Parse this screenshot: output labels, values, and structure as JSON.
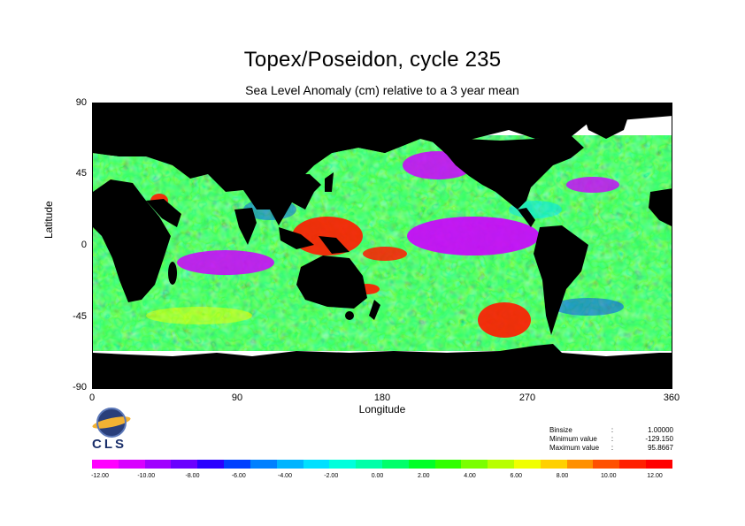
{
  "title": "Topex/Poseidon, cycle 235",
  "subtitle": "Sea Level Anomaly (cm) relative to a 3 year mean",
  "x_axis": {
    "label": "Longitude",
    "ticks": [
      "0",
      "90",
      "180",
      "270",
      "360"
    ]
  },
  "y_axis": {
    "label": "Latitude",
    "ticks": [
      "90",
      "45",
      "0",
      "-45",
      "-90"
    ]
  },
  "logo_text": "CLS",
  "stats": [
    {
      "label": "Binsize",
      "sep": ":",
      "value": "1.00000"
    },
    {
      "label": "Minimum value",
      "sep": ":",
      "value": "-129.150"
    },
    {
      "label": "Maximum value",
      "sep": ":",
      "value": "95.8667"
    }
  ],
  "colorbar": {
    "colors": [
      "#ff00ff",
      "#d800ff",
      "#a000ff",
      "#6a00ff",
      "#2a00ff",
      "#0040ff",
      "#0080ff",
      "#00b4ff",
      "#00e0ff",
      "#00ffdc",
      "#00ffa8",
      "#00ff6a",
      "#00ff28",
      "#30ff00",
      "#7aff00",
      "#b8ff00",
      "#f0ff00",
      "#ffd000",
      "#ff9000",
      "#ff5000",
      "#ff2000",
      "#ff0000"
    ],
    "tick_labels": [
      "-12.00",
      "-10.00",
      "-8.00",
      "-6.00",
      "-4.00",
      "-2.00",
      "0.00",
      "2.00",
      "4.00",
      "6.00",
      "8.00",
      "10.00",
      "12.00"
    ]
  },
  "colors": {
    "land": "#000000",
    "ice": "#ffffff",
    "warm": "#ff0000",
    "cool": "#cc00ff"
  }
}
